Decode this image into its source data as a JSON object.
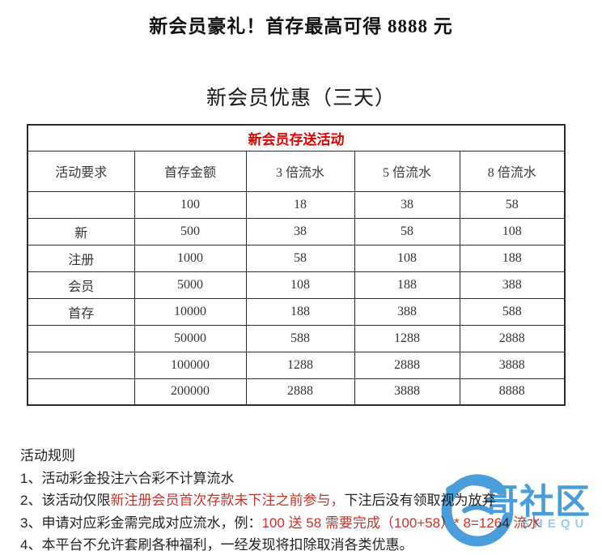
{
  "page": {
    "title": "新会员豪礼！首存最高可得 8888 元",
    "subtitle": "新会员优惠（三天）"
  },
  "promo_table": {
    "caption": "新会员存送活动",
    "caption_color": "#e00000",
    "columns": [
      "活动要求",
      "首存金额",
      "3 倍流水",
      "5 倍流水",
      "8 倍流水"
    ],
    "row_labels": [
      "",
      "新",
      "注册",
      "会员",
      "首存",
      "",
      "",
      ""
    ],
    "rows": [
      [
        "100",
        "18",
        "38",
        "58"
      ],
      [
        "500",
        "38",
        "58",
        "108"
      ],
      [
        "1000",
        "58",
        "108",
        "188"
      ],
      [
        "5000",
        "108",
        "188",
        "388"
      ],
      [
        "10000",
        "188",
        "388",
        "588"
      ],
      [
        "50000",
        "588",
        "1288",
        "2888"
      ],
      [
        "100000",
        "1288",
        "2888",
        "3888"
      ],
      [
        "200000",
        "2888",
        "3888",
        "8888"
      ]
    ]
  },
  "rules": {
    "heading": "活动规则",
    "red_color": "#c0362c",
    "items": [
      {
        "segments": [
          {
            "text": "1、活动彩金投注六合彩不计算流水",
            "red": false
          }
        ]
      },
      {
        "segments": [
          {
            "text": "2、该活动仅限",
            "red": false
          },
          {
            "text": "新注册会员首次存款未下注之前参与，",
            "red": true
          },
          {
            "text": "下注后没有领取视为放弃",
            "red": false
          }
        ]
      },
      {
        "segments": [
          {
            "text": "3、申请对应彩金需完成对应流水，例：",
            "red": false
          },
          {
            "text": "100 送 58 需要完成（100+58）* 8=1264 流水",
            "red": true
          }
        ]
      },
      {
        "segments": [
          {
            "text": "4、本平台不允许套刷各种福利，一经发现将扣除取消各类优惠。",
            "red": false
          }
        ]
      }
    ]
  },
  "watermark": {
    "text": "哥社区",
    "sub": "SHEQU",
    "color": "#2e8fd5",
    "sub_color": "#8ec4e8"
  }
}
